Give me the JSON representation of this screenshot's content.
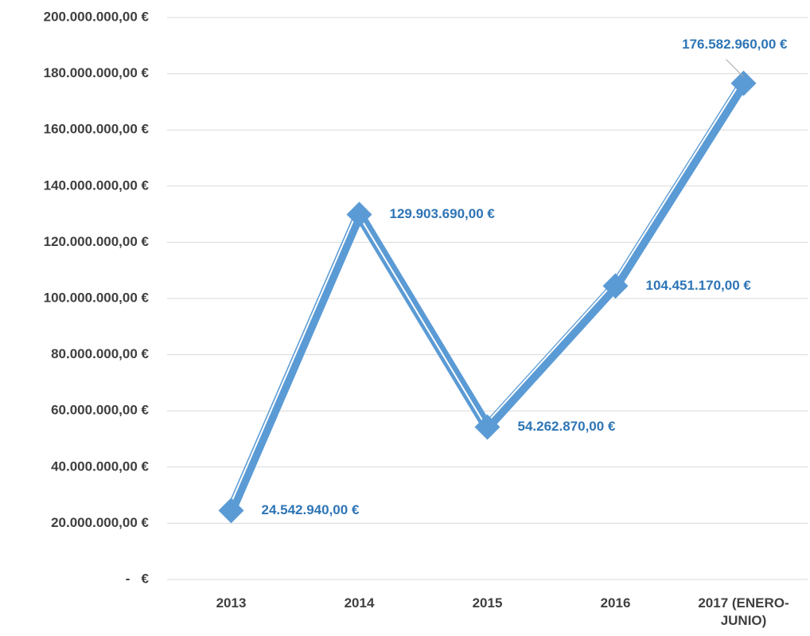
{
  "chart_data": {
    "type": "line",
    "categories": [
      "2013",
      "2014",
      "2015",
      "2016",
      "2017 (ENERO-JUNIO)"
    ],
    "series": [
      {
        "color": "#5b9bd5",
        "values": [
          24542940,
          129903690,
          54262870,
          104451170,
          176582960
        ],
        "value_labels": [
          "24.542.940,00 €",
          "129.903.690,00 €",
          "54.262.870,00 €",
          "104.451.170,00 €",
          "176.582.960,00 €"
        ]
      }
    ],
    "ylim": [
      0,
      200000000
    ],
    "yticks": [
      {
        "value": 0,
        "label": "-   €"
      },
      {
        "value": 20000000,
        "label": "20.000.000,00 €"
      },
      {
        "value": 40000000,
        "label": "40.000.000,00 €"
      },
      {
        "value": 60000000,
        "label": "60.000.000,00 €"
      },
      {
        "value": 80000000,
        "label": "80.000.000,00 €"
      },
      {
        "value": 100000000,
        "label": "100.000.000,00 €"
      },
      {
        "value": 120000000,
        "label": "120.000.000,00 €"
      },
      {
        "value": 140000000,
        "label": "140.000.000,00 €"
      },
      {
        "value": 160000000,
        "label": "160.000.000,00 €"
      },
      {
        "value": 180000000,
        "label": "180.000.000,00 €"
      },
      {
        "value": 200000000,
        "label": "200.000.000,00 €"
      }
    ],
    "grid": true
  }
}
